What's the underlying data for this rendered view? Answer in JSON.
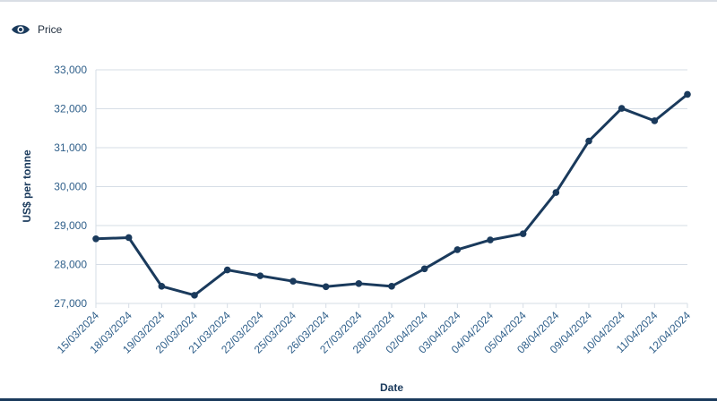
{
  "legend": {
    "label": "Price",
    "icon": "eye-icon"
  },
  "colors": {
    "series": "#1a3a5c",
    "grid": "#d6dde6",
    "tick_text": "#2f5f8a",
    "axis_title": "#1a3a5c"
  },
  "chart_data": {
    "type": "line",
    "title": "",
    "xlabel": "Date",
    "ylabel": "US$ per tonne",
    "ylim": [
      27000,
      33000
    ],
    "yticks": [
      "27,000",
      "28,000",
      "29,000",
      "30,000",
      "31,000",
      "32,000",
      "33,000"
    ],
    "yticks_values": [
      27000,
      28000,
      29000,
      30000,
      31000,
      32000,
      33000
    ],
    "grid": "horizontal",
    "legend_position": "top-left",
    "categories": [
      "15/03/2024",
      "18/03/2024",
      "19/03/2024",
      "20/03/2024",
      "21/03/2024",
      "22/03/2024",
      "25/03/2024",
      "26/03/2024",
      "27/03/2024",
      "28/03/2024",
      "02/04/2024",
      "03/04/2024",
      "04/04/2024",
      "05/04/2024",
      "08/04/2024",
      "09/04/2024",
      "10/04/2024",
      "11/04/2024",
      "12/04/2024"
    ],
    "series": [
      {
        "name": "Price",
        "values": [
          28660,
          28690,
          27440,
          27210,
          27860,
          27710,
          27570,
          27430,
          27510,
          27440,
          27890,
          28380,
          28630,
          28790,
          29850,
          31170,
          32010,
          31690,
          32370
        ]
      }
    ]
  }
}
